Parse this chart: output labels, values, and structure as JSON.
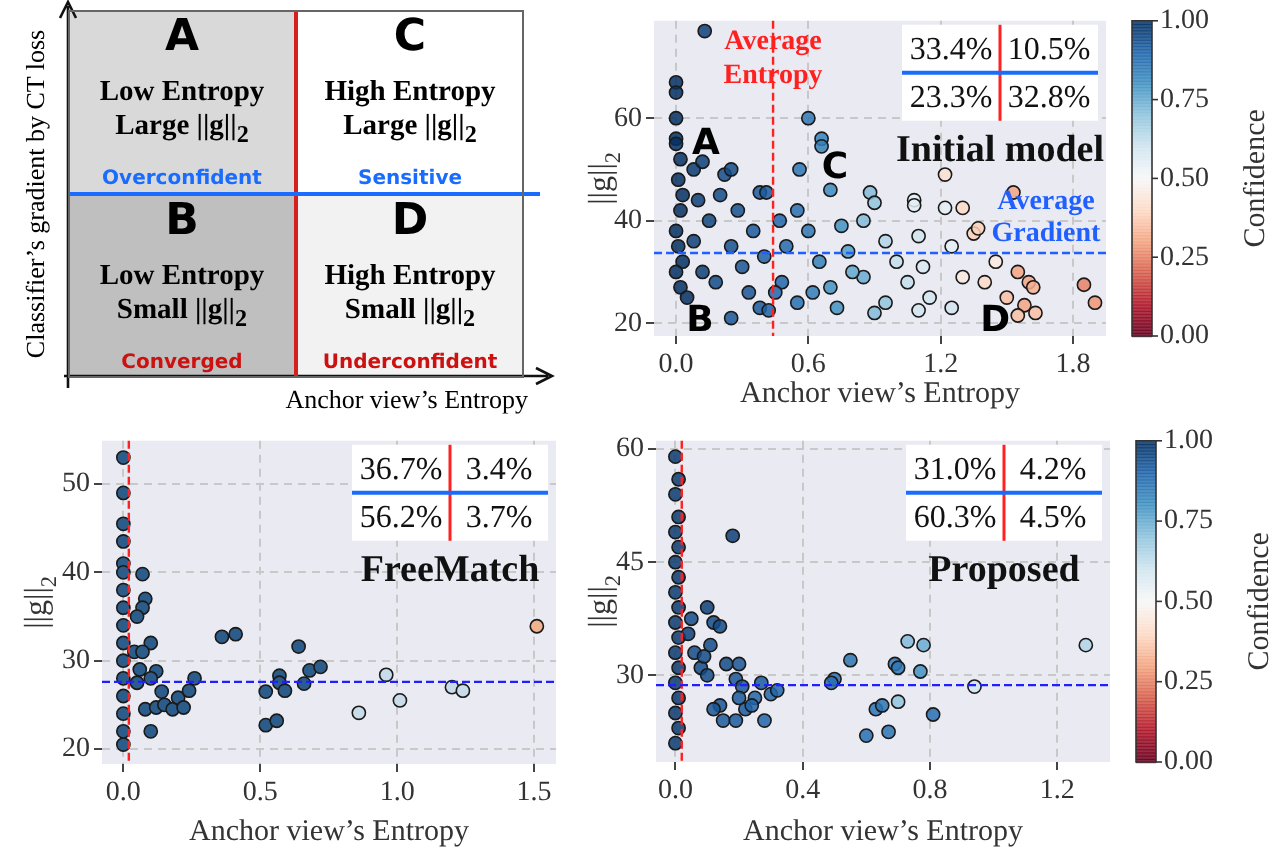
{
  "chart_data": [
    {
      "type": "other",
      "xlabel": "Anchor view’s Entropy",
      "ylabel": "Classifier’s gradient by CT loss",
      "annotations": [
        "A",
        "Low Entropy",
        "Large ||g||$_{2}$",
        "Overconfident",
        "C",
        "High Entropy",
        "Large ||g||$_{2}$",
        "Sensitive",
        "B",
        "Low Entropy",
        "Small ||g||$_{2}$",
        "Converged",
        "D",
        "High Entropy",
        "Small ||g||$_{2}$",
        "Underconfident"
      ]
    },
    {
      "type": "scatter",
      "title": "Initial model",
      "xlabel": "Anchor view’s Entropy",
      "ylabel": "||g||$_{2}$",
      "clabel": "Confidence",
      "clim": [
        0,
        1
      ],
      "cticks": [
        {
          "value": 0,
          "label": "0.00"
        },
        {
          "value": 0.25,
          "label": "0.25"
        },
        {
          "value": 0.5,
          "label": "0.50"
        },
        {
          "value": 0.75,
          "label": "0.75"
        },
        {
          "value": 1,
          "label": "1.00"
        }
      ],
      "xlim": [
        -0.1,
        1.95
      ],
      "ylim": [
        17.5,
        79
      ],
      "xticks": [
        {
          "value": 0,
          "label": "0.0"
        },
        {
          "value": 0.6,
          "label": "0.6"
        },
        {
          "value": 1.2,
          "label": "1.2"
        },
        {
          "value": 1.8,
          "label": "1.8"
        }
      ],
      "yticks": [
        20,
        40,
        60
      ],
      "grid": true,
      "marker": "circle",
      "x": [
        0,
        0,
        0,
        0,
        0,
        0.02,
        0.01,
        0.03,
        0.02,
        0,
        0.01,
        0.03,
        0,
        0.02,
        0.05,
        0.08,
        0.12,
        0.13,
        0.1,
        0.15,
        0.08,
        0.12,
        0.18,
        0.22,
        0.25,
        0.2,
        0.28,
        0.25,
        0.3,
        0.33,
        0.25,
        0.38,
        0.41,
        0.35,
        0.4,
        0.38,
        0.42,
        0.47,
        0.5,
        0.48,
        0.55,
        0.6,
        0.56,
        0.66,
        0.66,
        0.7,
        0.6,
        0.65,
        0.62,
        0.75,
        0.78,
        0.73,
        0.85,
        0.88,
        0.9,
        0.85,
        0.9,
        0.95,
        1.0,
        1.05,
        1.08,
        1.08,
        1.1,
        1.12,
        1.15,
        1.22,
        1.22,
        1.25,
        1.3,
        1.35,
        1.37,
        1.3,
        1.25,
        1.4,
        1.45,
        1.5,
        1.53,
        1.55,
        1.58,
        1.6,
        1.62,
        1.63,
        1.55,
        1.85,
        1.9,
        1.1,
        0.95,
        0.8,
        0.7,
        0.55,
        0.45
      ],
      "values": [
        67,
        65,
        60,
        56,
        55,
        52,
        48,
        45,
        42,
        38,
        35,
        32,
        30,
        27,
        25,
        50,
        51.5,
        77,
        44,
        40,
        36,
        30,
        28,
        49,
        50,
        45,
        42,
        35,
        31,
        26,
        21,
        45.5,
        45.5,
        38,
        33,
        23,
        22.5,
        40,
        35,
        28,
        42,
        60,
        50,
        56,
        54.5,
        46,
        38,
        32,
        26,
        39,
        34,
        23,
        40,
        45.5,
        43.5,
        29,
        22,
        36,
        32,
        28,
        44,
        43,
        37,
        31,
        25,
        49,
        42.5,
        35,
        42.5,
        37.5,
        38.5,
        29,
        23,
        28,
        32,
        25,
        45.5,
        30,
        23.5,
        28,
        27,
        22,
        21.5,
        27.5,
        24,
        22.5,
        24,
        30,
        27,
        24,
        26
      ],
      "cvalues": [
        1,
        1,
        1,
        1,
        1,
        1,
        1,
        1,
        1,
        1,
        1,
        1,
        1,
        1,
        1,
        0.98,
        0.97,
        0.97,
        0.97,
        0.96,
        0.97,
        0.97,
        0.95,
        0.95,
        0.95,
        0.95,
        0.94,
        0.94,
        0.93,
        0.93,
        0.93,
        0.92,
        0.92,
        0.92,
        0.91,
        0.92,
        0.91,
        0.9,
        0.89,
        0.9,
        0.88,
        0.86,
        0.87,
        0.84,
        0.84,
        0.82,
        0.86,
        0.84,
        0.85,
        0.8,
        0.78,
        0.8,
        0.72,
        0.72,
        0.7,
        0.75,
        0.72,
        0.65,
        0.62,
        0.62,
        0.55,
        0.55,
        0.6,
        0.58,
        0.6,
        0.42,
        0.55,
        0.55,
        0.4,
        0.38,
        0.38,
        0.45,
        0.6,
        0.4,
        0.45,
        0.35,
        0.3,
        0.3,
        0.3,
        0.3,
        0.32,
        0.35,
        0.35,
        0.25,
        0.28,
        0.6,
        0.7,
        0.76,
        0.8,
        0.88,
        0.9
      ],
      "ref_lines": [
        {
          "axis": "x",
          "value": 0.44,
          "label": "Average Entropy",
          "color": "#ff2020",
          "line_style": "dashed"
        },
        {
          "axis": "y",
          "value": 33.7,
          "label": "Average Gradient",
          "color": "#2060ff",
          "line_style": "dashed"
        }
      ],
      "annotations": [
        "33.4%",
        "10.5%",
        "23.3%",
        "32.8%",
        "A",
        "B",
        "C",
        "D"
      ]
    },
    {
      "type": "scatter",
      "title": "FreeMatch",
      "xlabel": "Anchor view’s Entropy",
      "ylabel": "||g||$_{2}$",
      "xlim": [
        -0.078,
        1.58
      ],
      "ylim": [
        18.3,
        54.9
      ],
      "xticks": [
        {
          "value": 0,
          "label": "0.0"
        },
        {
          "value": 0.5,
          "label": "0.5"
        },
        {
          "value": 1,
          "label": "1.0"
        },
        {
          "value": 1.5,
          "label": "1.5"
        }
      ],
      "yticks": [
        20,
        30,
        40,
        50
      ],
      "grid": true,
      "marker": "circle",
      "series": [
        {
          "color": "#2c5c8a",
          "x": [
            0,
            0,
            0,
            0,
            0,
            0,
            0,
            0,
            0,
            0,
            0,
            0,
            0,
            0,
            0,
            0,
            0.07,
            0.08,
            0.07,
            0.05,
            0.1,
            0.04,
            0.07,
            0.06,
            0.12,
            0.1,
            0.05,
            0.08,
            0.1,
            0.12,
            0.14,
            0.15,
            0.18,
            0.2,
            0.22,
            0.24,
            0.26,
            0.36,
            0.41,
            0.52,
            0.52,
            0.56,
            0.57,
            0.57,
            0.59,
            0.64,
            0.66,
            0.68,
            0.72
          ],
          "values": [
            53,
            49,
            45.5,
            43.5,
            41,
            40,
            38,
            36,
            34,
            32,
            30,
            28,
            26,
            24,
            22,
            20.5,
            39.8,
            37,
            36,
            35,
            32,
            31,
            31,
            29,
            28.8,
            28,
            27.5,
            24.5,
            22,
            24.7,
            26.5,
            25,
            24.5,
            25.8,
            24.7,
            26.6,
            28,
            32.7,
            33,
            26.5,
            22.7,
            23.2,
            28.3,
            27.5,
            26.6,
            31.6,
            27.4,
            28.9,
            29.3
          ]
        },
        {
          "color": "#c9dce9",
          "x": [
            0.86,
            0.96,
            1.01,
            1.2,
            1.24
          ],
          "values": [
            24.1,
            28.4,
            25.5,
            27,
            26.6
          ]
        },
        {
          "color": "#f2b48f",
          "x": [
            1.51
          ],
          "values": [
            33.9
          ]
        }
      ],
      "ref_lines": [
        {
          "axis": "x",
          "value": 0.02,
          "color": "#ff2020",
          "line_style": "dashed"
        },
        {
          "axis": "y",
          "value": 27.6,
          "color": "#2020ff",
          "line_style": "dashed"
        }
      ],
      "annotations": [
        "36.7%",
        "3.4%",
        "56.2%",
        "3.7%"
      ]
    },
    {
      "type": "scatter",
      "title": "Proposed",
      "xlabel": "Anchor view’s Entropy",
      "ylabel": "||g||$_{2}$",
      "clabel": "Confidence",
      "clim": [
        0,
        1
      ],
      "cticks": [
        {
          "value": 0,
          "label": "0.00"
        },
        {
          "value": 0.25,
          "label": "0.25"
        },
        {
          "value": 0.5,
          "label": "0.50"
        },
        {
          "value": 0.75,
          "label": "0.75"
        },
        {
          "value": 1,
          "label": "1.00"
        }
      ],
      "xlim": [
        -0.061,
        1.366
      ],
      "ylim": [
        18.5,
        61.1
      ],
      "xticks": [
        {
          "value": 0,
          "label": "0.0"
        },
        {
          "value": 0.4,
          "label": "0.4"
        },
        {
          "value": 0.8,
          "label": "0.8"
        },
        {
          "value": 1.2,
          "label": "1.2"
        }
      ],
      "yticks": [
        30,
        45,
        60
      ],
      "grid": true,
      "marker": "circle",
      "x": [
        0,
        0.01,
        0,
        0.01,
        0,
        0.01,
        0,
        0.01,
        0,
        0.01,
        0,
        0.01,
        0,
        0.01,
        0,
        0.01,
        0,
        0.01,
        0,
        0.18,
        0.1,
        0.12,
        0.14,
        0.05,
        0.04,
        0.06,
        0.11,
        0.16,
        0.08,
        0.1,
        0.09,
        0.2,
        0.19,
        0.21,
        0.25,
        0.27,
        0.3,
        0.32,
        0.2,
        0.22,
        0.24,
        0.15,
        0.19,
        0.28,
        0.14,
        0.12,
        0.5,
        0.49,
        0.55,
        0.63,
        0.65,
        0.6,
        0.67,
        0.69,
        0.7,
        0.7,
        0.73,
        0.77,
        0.78,
        0.81,
        0.94,
        1.29
      ],
      "values": [
        59,
        56,
        54,
        51,
        49,
        47,
        45,
        43,
        41,
        39,
        37,
        35,
        33,
        31,
        29,
        27,
        25,
        23,
        21,
        48.5,
        39,
        37,
        36.5,
        37.5,
        35.5,
        33,
        34,
        31.5,
        31,
        30,
        32.5,
        31.5,
        29.5,
        28.5,
        27,
        29,
        27.5,
        28,
        27,
        25.5,
        26,
        24,
        24,
        24,
        26,
        25.5,
        29.5,
        29,
        32,
        25.5,
        26,
        22,
        22.5,
        31.5,
        31,
        26.5,
        34.5,
        30.5,
        34,
        24.8,
        28.5,
        34
      ],
      "cvalues": [
        0.98,
        0.98,
        0.98,
        0.98,
        0.98,
        0.98,
        0.98,
        0.98,
        0.98,
        0.98,
        0.98,
        0.98,
        0.98,
        0.98,
        0.98,
        0.98,
        0.98,
        0.98,
        0.98,
        0.97,
        0.97,
        0.95,
        0.95,
        0.95,
        0.97,
        0.95,
        0.95,
        0.95,
        0.95,
        0.95,
        0.95,
        0.93,
        0.93,
        0.93,
        0.9,
        0.92,
        0.9,
        0.9,
        0.92,
        0.92,
        0.9,
        0.92,
        0.92,
        0.9,
        0.93,
        0.93,
        0.88,
        0.88,
        0.87,
        0.87,
        0.87,
        0.88,
        0.87,
        0.86,
        0.86,
        0.7,
        0.72,
        0.8,
        0.75,
        0.88,
        0.6,
        0.65
      ],
      "ref_lines": [
        {
          "axis": "x",
          "value": 0.02,
          "color": "#ff2020",
          "line_style": "dashed"
        },
        {
          "axis": "y",
          "value": 28.7,
          "color": "#2020ff",
          "line_style": "dashed"
        }
      ],
      "annotations": [
        "31.0%",
        "4.2%",
        "60.3%",
        "4.5%"
      ]
    }
  ]
}
